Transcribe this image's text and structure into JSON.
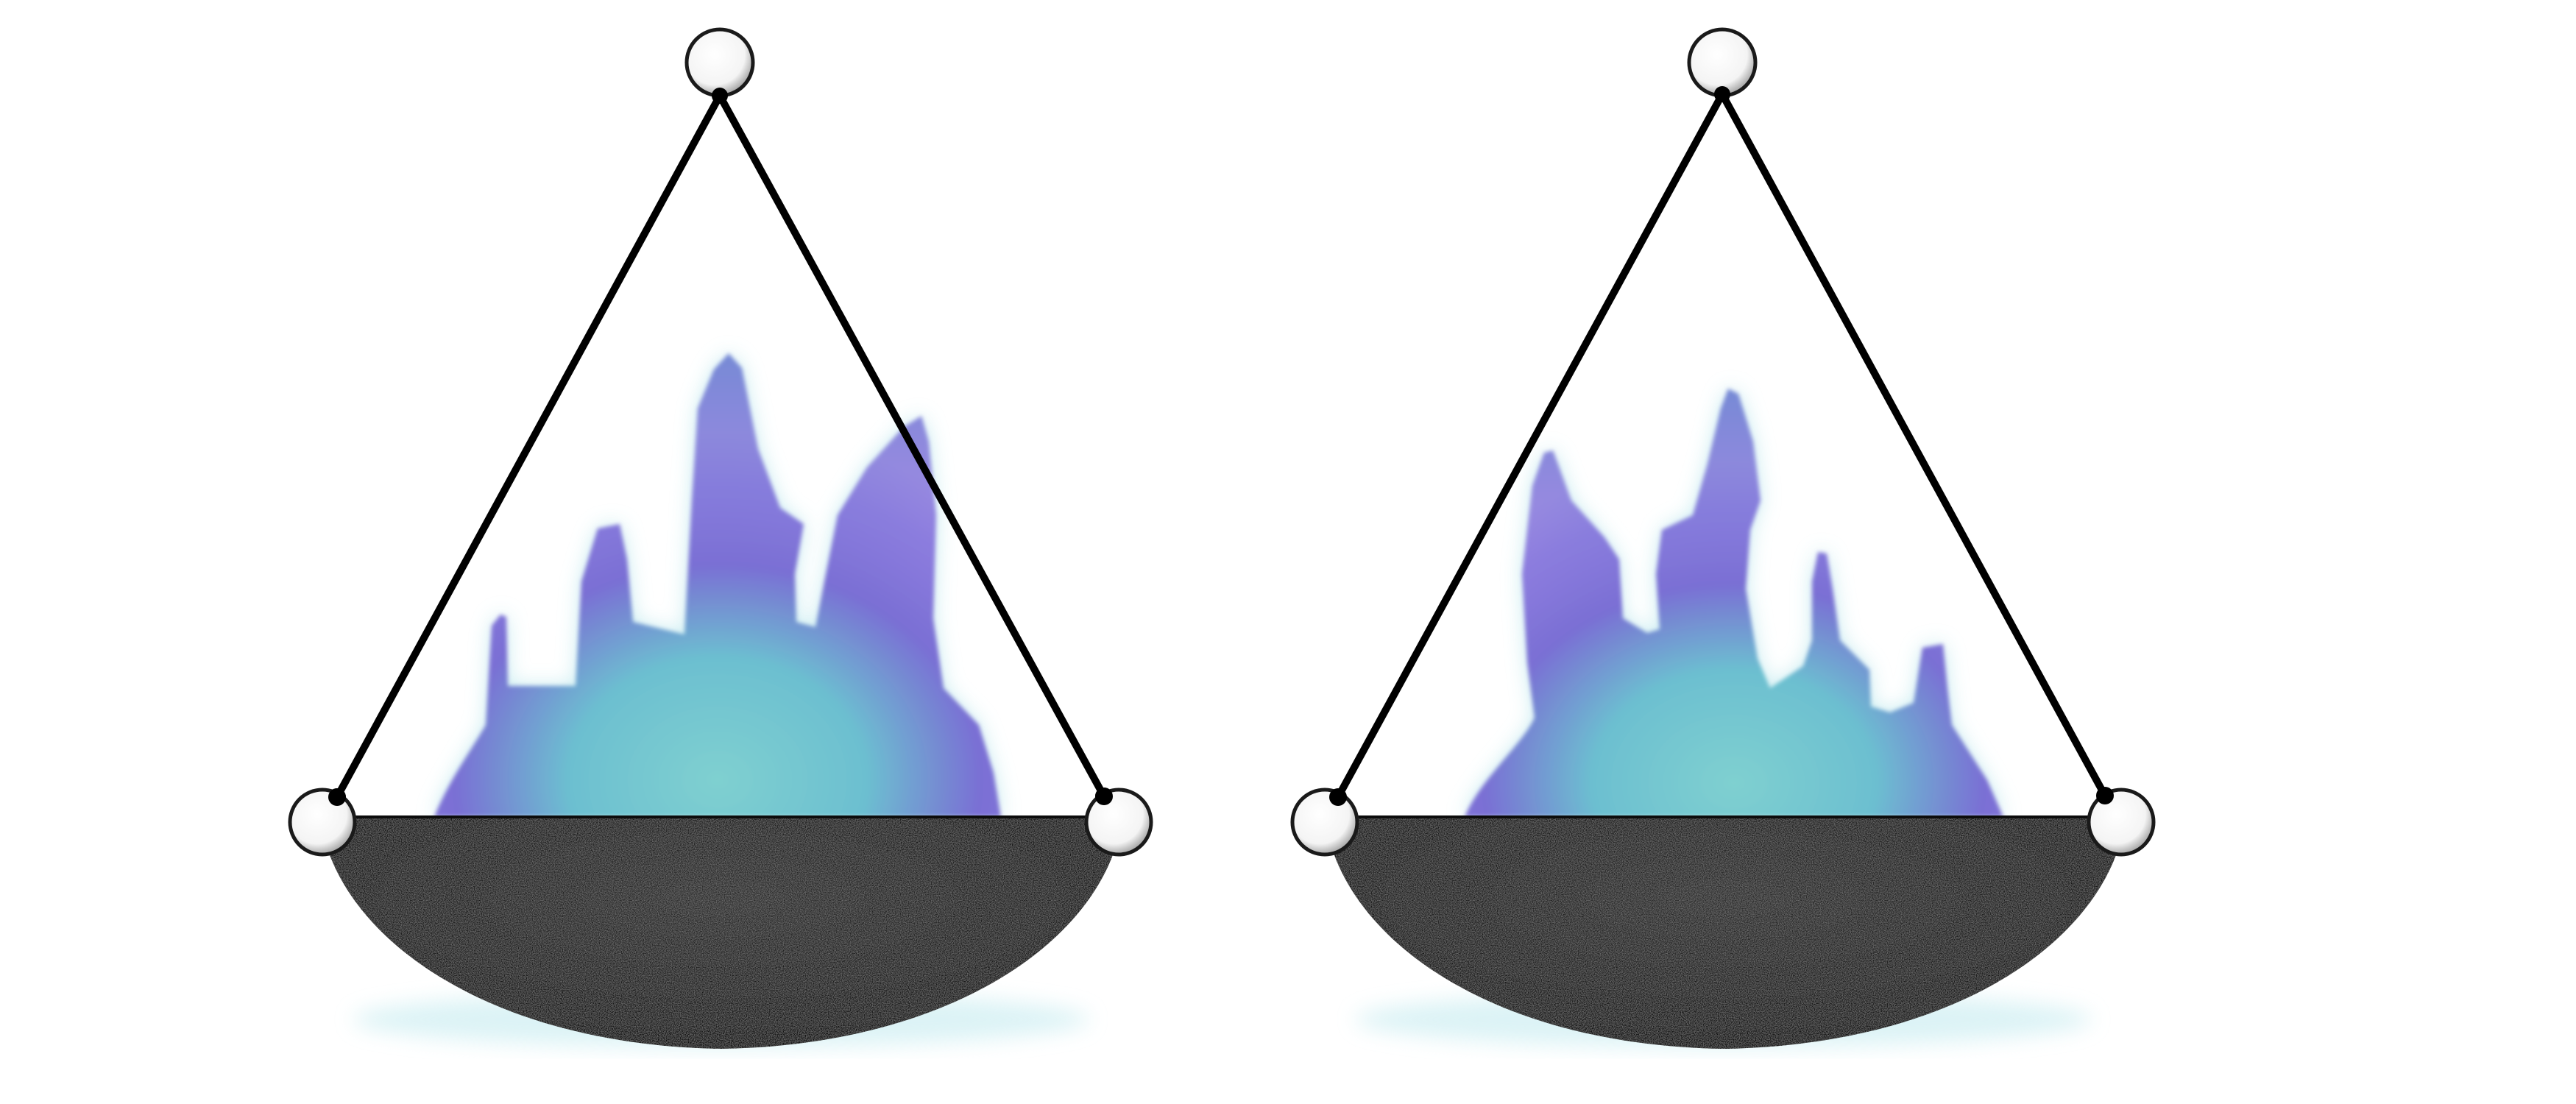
{
  "scene": {
    "type": "hanging fire braziers (game sprite sheet)",
    "background": "#ffffff"
  },
  "palette": {
    "rope": "#000000",
    "ring_fill": "#ffffff",
    "ring_stroke": "#222222",
    "bowl_dark": "#101010",
    "bowl_light": "#3a3a3a",
    "flame_cyan": "#7ecfd2",
    "flame_teal": "#5ab5c8",
    "flame_violet": "#7a6fd4",
    "flame_lilac": "#a48be0",
    "flame_glow": "#bfe9ee"
  },
  "sprites": [
    {
      "name": "brazier-left",
      "flame_variant": "tall-center"
    },
    {
      "name": "brazier-right",
      "flame_variant": "tall-left"
    }
  ]
}
